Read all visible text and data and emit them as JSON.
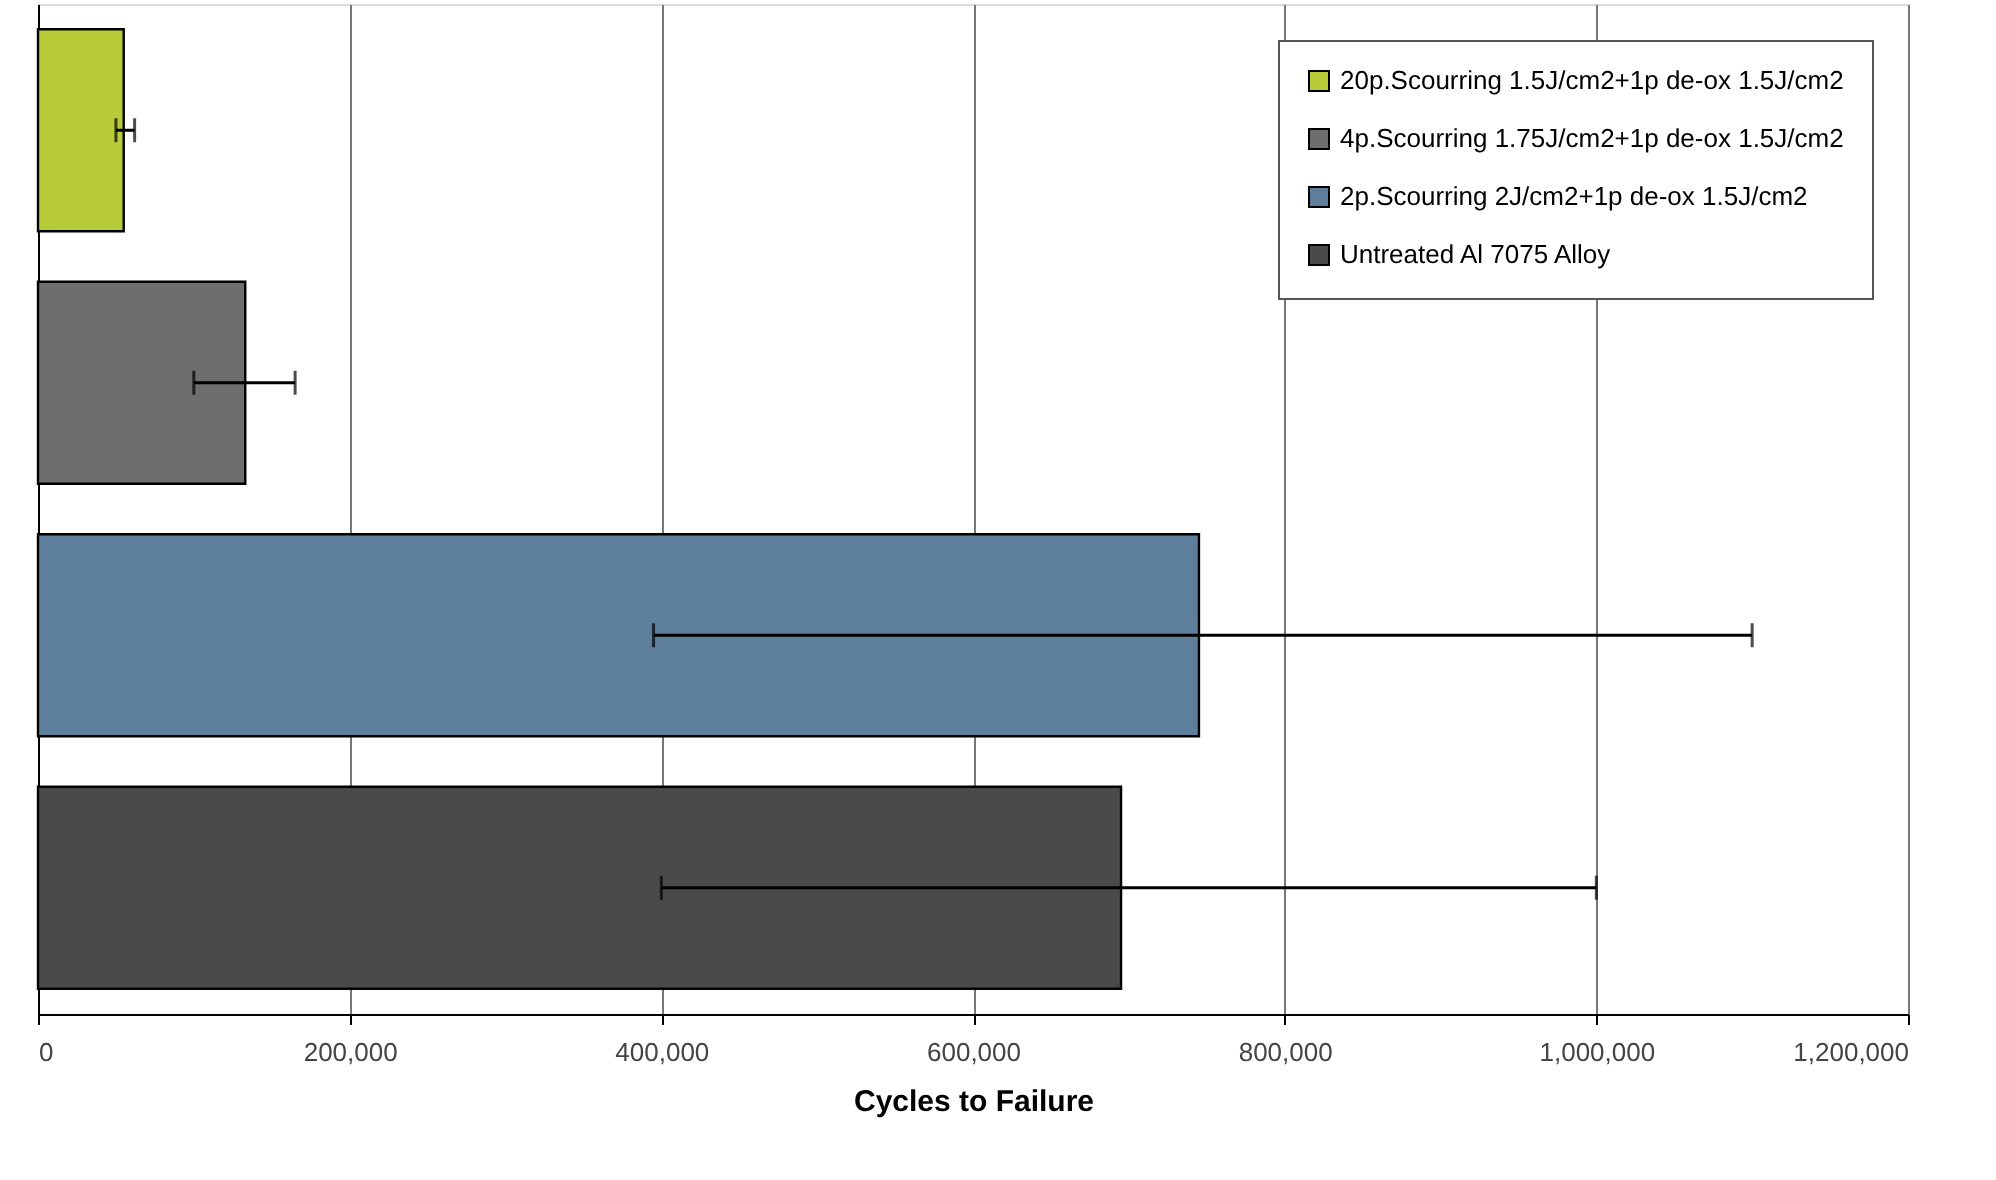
{
  "chart_data": {
    "type": "bar",
    "orientation": "horizontal",
    "xlabel": "Cycles to Failure",
    "categories": [
      null,
      null,
      null,
      null
    ],
    "xlim": [
      0,
      1200000
    ],
    "xticks": [
      {
        "value": 0,
        "label": "0"
      },
      {
        "value": 200000,
        "label": "200,000"
      },
      {
        "value": 400000,
        "label": "400,000"
      },
      {
        "value": 600000,
        "label": "600,000"
      },
      {
        "value": 800000,
        "label": "800,000"
      },
      {
        "value": 1000000,
        "label": "1,000,000"
      },
      {
        "value": 1200000,
        "label": "1,200,000"
      }
    ],
    "grid": "x",
    "legend": "top right",
    "tick_labels": "x",
    "series": [
      {
        "name": "20p.Scourring 1.5J/cm2+1p de-ox 1.5J/cm2",
        "color": "#b8cc3a",
        "values": [
          55000,
          null,
          null,
          null
        ],
        "errors": [
          [
            50000,
            62000
          ],
          null,
          null,
          null
        ]
      },
      {
        "name": "4p.Scourring 1.75J/cm2+1p de-ox 1.5J/cm2",
        "color": "#6e6e6e",
        "values": [
          null,
          133000,
          null,
          null
        ],
        "errors": [
          null,
          [
            100000,
            165000
          ],
          null,
          null
        ]
      },
      {
        "name": "2p.Scourring 2J/cm2+1p de-ox 1.5J/cm2",
        "color": "#5d7f9b",
        "values": [
          null,
          null,
          745000,
          null
        ],
        "errors": [
          null,
          null,
          [
            395000,
            1100000
          ],
          null
        ]
      },
      {
        "name": "Untreated Al 7075 Alloy",
        "color": "#4a4a4a",
        "values": [
          null,
          null,
          null,
          695000
        ],
        "errors": [
          null,
          null,
          null,
          [
            400000,
            1000000
          ]
        ]
      }
    ]
  }
}
